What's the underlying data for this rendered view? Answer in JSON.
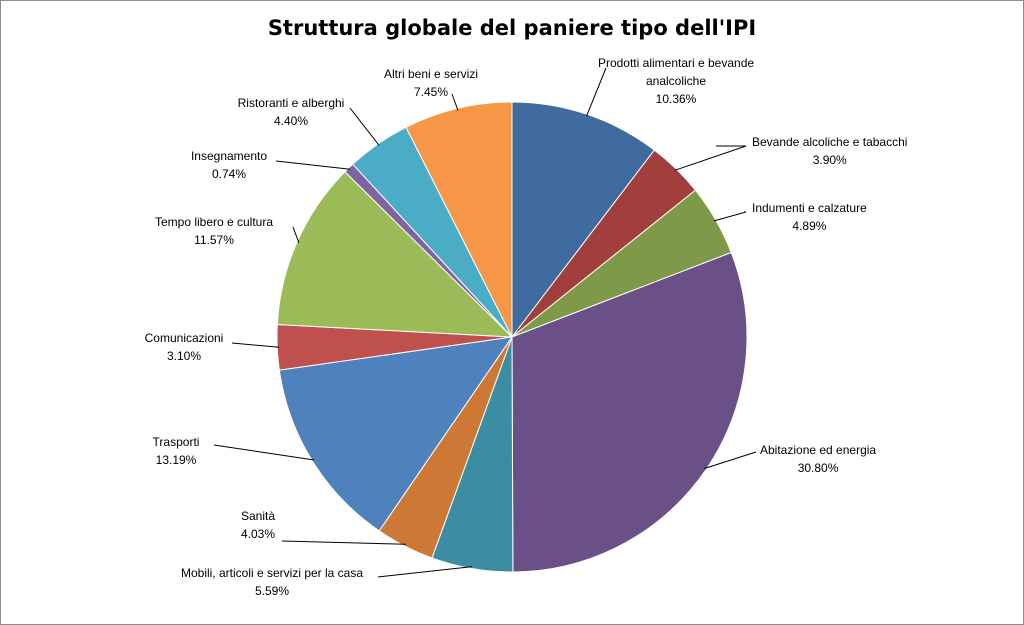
{
  "chart_data": {
    "type": "pie",
    "title": "Struttura globale del paniere tipo dell'IPI",
    "start_angle_deg": 0,
    "direction": "clockwise",
    "slices": [
      {
        "name_lines": [
          "Prodotti alimentari e bevande",
          "analcoliche"
        ],
        "value": 10.36,
        "label": "10.36%",
        "color": "#3f6b9e"
      },
      {
        "name_lines": [
          "Bevande alcoliche e tabacchi"
        ],
        "value": 3.9,
        "label": "3.90%",
        "color": "#a13f3d"
      },
      {
        "name_lines": [
          "Indumenti e calzature"
        ],
        "value": 4.89,
        "label": "4.89%",
        "color": "#7e9a49"
      },
      {
        "name_lines": [
          "Abitazione ed energia"
        ],
        "value": 30.8,
        "label": "30.80%",
        "color": "#6a5087"
      },
      {
        "name_lines": [
          "Mobili, articoli e servizi per la casa"
        ],
        "value": 5.59,
        "label": "5.59%",
        "color": "#3c8da4"
      },
      {
        "name_lines": [
          "Sanità"
        ],
        "value": 4.03,
        "label": "4.03%",
        "color": "#cd7935"
      },
      {
        "name_lines": [
          "Trasporti"
        ],
        "value": 13.19,
        "label": "13.19%",
        "color": "#4f81bd"
      },
      {
        "name_lines": [
          "Comunicazioni"
        ],
        "value": 3.1,
        "label": "3.10%",
        "color": "#c0504d"
      },
      {
        "name_lines": [
          "Tempo libero e cultura"
        ],
        "value": 11.57,
        "label": "11.57%",
        "color": "#9bbb59"
      },
      {
        "name_lines": [
          "Insegnamento"
        ],
        "value": 0.74,
        "label": "0.74%",
        "color": "#8064a2"
      },
      {
        "name_lines": [
          "Ristoranti e alberghi"
        ],
        "value": 4.4,
        "label": "4.40%",
        "color": "#4bacc6"
      },
      {
        "name_lines": [
          "Altri beni e servizi"
        ],
        "value": 7.45,
        "label": "7.45%",
        "color": "#f79646"
      }
    ]
  }
}
